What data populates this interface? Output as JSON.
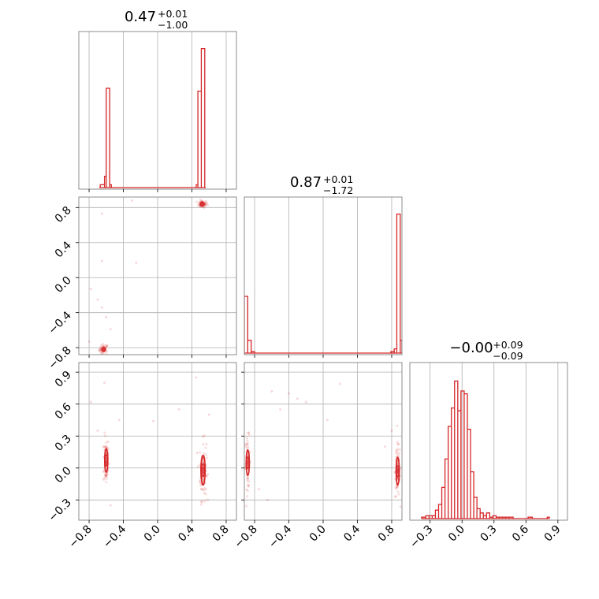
{
  "chart_data": {
    "type": "corner",
    "color": "#d62728",
    "panels": [
      {
        "id": "hist-p0",
        "type": "histogram",
        "title_value": "0.47",
        "title_plus": "+0.01",
        "title_minus": "−1.00",
        "xlim": [
          -0.92,
          0.92
        ],
        "xticks": [
          -0.8,
          -0.4,
          0.0,
          0.4,
          0.8
        ],
        "bins": [
          [
            -0.68,
            -0.67,
            0.0
          ],
          [
            -0.67,
            -0.62,
            0.02
          ],
          [
            -0.62,
            -0.6,
            0.08
          ],
          [
            -0.6,
            -0.56,
            0.7
          ],
          [
            -0.56,
            -0.54,
            0.02
          ],
          [
            0.45,
            0.47,
            0.02
          ],
          [
            0.47,
            0.51,
            0.68
          ],
          [
            0.51,
            0.55,
            0.98
          ],
          [
            0.55,
            0.56,
            0.0
          ]
        ]
      },
      {
        "id": "scatter-p0-p1",
        "type": "scatter",
        "xlim": [
          -0.92,
          0.92
        ],
        "ylim": [
          -0.88,
          0.92
        ],
        "xticks": [
          -0.8,
          -0.4,
          0.0,
          0.4,
          0.8
        ],
        "yticks": [
          -0.8,
          -0.4,
          0.0,
          0.4,
          0.8
        ],
        "ytick_labels": [
          "−0.8",
          "−0.4",
          "0.0",
          "0.4",
          "0.8"
        ],
        "clusters": [
          {
            "x": -0.63,
            "y": -0.82,
            "sx": 0.025,
            "sy": 0.03,
            "n": 45,
            "contours": [
              [
                0.02,
                0.02
              ],
              [
                0.01,
                0.012
              ]
            ]
          },
          {
            "x": 0.52,
            "y": 0.84,
            "sx": 0.03,
            "sy": 0.02,
            "n": 45,
            "contours": [
              [
                0.025,
                0.02
              ],
              [
                0.012,
                0.01
              ]
            ]
          }
        ],
        "outliers": [
          [
            -0.65,
            0.73
          ],
          [
            -0.65,
            0.19
          ],
          [
            -0.25,
            0.17
          ],
          [
            -0.7,
            -0.25
          ],
          [
            -0.78,
            -0.13
          ],
          [
            -0.6,
            -0.45
          ],
          [
            -0.55,
            -0.59
          ],
          [
            -0.8,
            -0.73
          ],
          [
            -0.65,
            -0.34
          ],
          [
            -0.3,
            0.88
          ]
        ]
      },
      {
        "id": "hist-p1",
        "type": "histogram",
        "title_value": "0.87",
        "title_plus": "+0.01",
        "title_minus": "−1.72",
        "xlim": [
          -0.92,
          0.92
        ],
        "xticks": [
          -0.8,
          -0.4,
          0.0,
          0.4,
          0.8
        ],
        "bins": [
          [
            -0.92,
            -0.88,
            0.4
          ],
          [
            -0.88,
            -0.84,
            0.09
          ],
          [
            -0.84,
            -0.8,
            0.01
          ],
          [
            0.79,
            0.83,
            0.01
          ],
          [
            0.83,
            0.86,
            0.03
          ],
          [
            0.86,
            0.9,
            0.98
          ],
          [
            0.9,
            0.92,
            0.09
          ]
        ]
      },
      {
        "id": "scatter-p0-p2",
        "type": "scatter",
        "xlim": [
          -0.92,
          0.92
        ],
        "ylim": [
          -0.49,
          0.99
        ],
        "xticks": [
          -0.8,
          -0.4,
          0.0,
          0.4,
          0.8
        ],
        "xtick_labels": [
          "−0.8",
          "−0.4",
          "0.0",
          "0.4",
          "0.8"
        ],
        "yticks": [
          -0.3,
          0.0,
          0.3,
          0.6,
          0.9
        ],
        "ytick_labels": [
          "−0.3",
          "0.0",
          "0.3",
          "0.6",
          "0.9"
        ],
        "clusters": [
          {
            "x": -0.6,
            "y": 0.07,
            "sx": 0.015,
            "sy": 0.12,
            "n": 70,
            "contours": [
              [
                0.018,
                0.11
              ],
              [
                0.01,
                0.05
              ]
            ]
          },
          {
            "x": 0.53,
            "y": -0.02,
            "sx": 0.02,
            "sy": 0.14,
            "n": 90,
            "contours": [
              [
                0.025,
                0.14
              ],
              [
                0.015,
                0.06
              ]
            ]
          }
        ],
        "outliers": [
          [
            -0.78,
            0.62
          ],
          [
            -0.7,
            0.35
          ],
          [
            -0.62,
            0.8
          ],
          [
            -0.45,
            0.45
          ],
          [
            -0.55,
            -0.35
          ],
          [
            -0.05,
            0.44
          ],
          [
            0.25,
            0.55
          ],
          [
            0.6,
            0.5
          ],
          [
            0.45,
            0.85
          ]
        ]
      },
      {
        "id": "scatter-p1-p2",
        "type": "scatter",
        "xlim": [
          -0.92,
          0.92
        ],
        "ylim": [
          -0.49,
          0.99
        ],
        "xticks": [
          -0.8,
          -0.4,
          0.0,
          0.4,
          0.8
        ],
        "xtick_labels": [
          "−0.8",
          "−0.4",
          "0.0",
          "0.4",
          "0.8"
        ],
        "yticks": [
          -0.3,
          0.0,
          0.3,
          0.6,
          0.9
        ],
        "clusters": [
          {
            "x": -0.88,
            "y": 0.05,
            "sx": 0.015,
            "sy": 0.12,
            "n": 60,
            "contours": [
              [
                0.015,
                0.12
              ],
              [
                0.008,
                0.05
              ]
            ]
          },
          {
            "x": 0.87,
            "y": -0.03,
            "sx": 0.015,
            "sy": 0.13,
            "n": 80,
            "contours": [
              [
                0.015,
                0.13
              ],
              [
                0.008,
                0.05
              ]
            ]
          }
        ],
        "outliers": [
          [
            -0.6,
            0.72
          ],
          [
            -0.4,
            0.7
          ],
          [
            -0.3,
            0.65
          ],
          [
            -0.5,
            0.55
          ],
          [
            -0.2,
            0.62
          ],
          [
            0.2,
            0.79
          ],
          [
            0.05,
            0.45
          ],
          [
            -0.75,
            -0.2
          ],
          [
            -0.65,
            -0.3
          ],
          [
            0.8,
            0.35
          ],
          [
            0.72,
            0.2
          ]
        ]
      },
      {
        "id": "hist-p2",
        "type": "histogram",
        "title_value": "−0.00",
        "title_plus": "+0.09",
        "title_minus": "−0.09",
        "xlim": [
          -0.49,
          0.99
        ],
        "xticks": [
          -0.3,
          0.0,
          0.3,
          0.6,
          0.9
        ],
        "xtick_labels": [
          "−0.3",
          "0.0",
          "0.3",
          "0.6",
          "0.9"
        ],
        "bins": [
          [
            -0.38,
            -0.34,
            0.01
          ],
          [
            -0.34,
            -0.31,
            0.02
          ],
          [
            -0.31,
            -0.28,
            0.02
          ],
          [
            -0.28,
            -0.25,
            0.02
          ],
          [
            -0.25,
            -0.22,
            0.06
          ],
          [
            -0.22,
            -0.19,
            0.1
          ],
          [
            -0.19,
            -0.16,
            0.22
          ],
          [
            -0.16,
            -0.13,
            0.42
          ],
          [
            -0.13,
            -0.1,
            0.65
          ],
          [
            -0.1,
            -0.07,
            0.78
          ],
          [
            -0.07,
            -0.04,
            0.97
          ],
          [
            -0.04,
            -0.01,
            0.76
          ],
          [
            -0.01,
            0.02,
            0.9
          ],
          [
            0.02,
            0.05,
            0.88
          ],
          [
            0.05,
            0.08,
            0.63
          ],
          [
            0.08,
            0.11,
            0.33
          ],
          [
            0.11,
            0.14,
            0.15
          ],
          [
            0.14,
            0.17,
            0.07
          ],
          [
            0.17,
            0.2,
            0.04
          ],
          [
            0.2,
            0.23,
            0.02
          ],
          [
            0.23,
            0.26,
            0.04
          ],
          [
            0.26,
            0.29,
            0.01
          ],
          [
            0.29,
            0.32,
            0.02
          ],
          [
            0.32,
            0.35,
            0.01
          ],
          [
            0.35,
            0.38,
            0.01
          ],
          [
            0.38,
            0.41,
            0.01
          ],
          [
            0.41,
            0.44,
            0.01
          ],
          [
            0.44,
            0.48,
            0.01
          ],
          [
            0.62,
            0.66,
            0.01
          ],
          [
            0.8,
            0.82,
            0.01
          ]
        ]
      }
    ]
  }
}
